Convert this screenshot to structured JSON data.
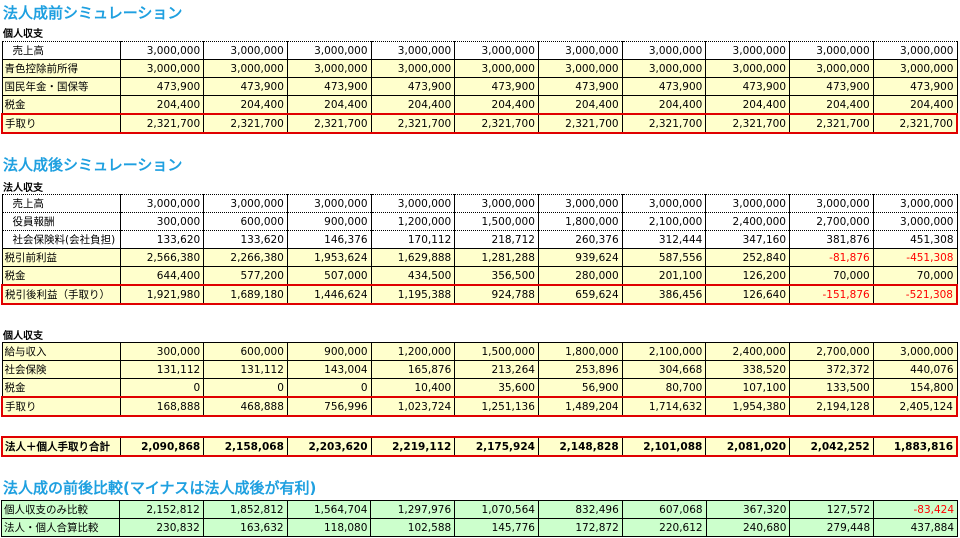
{
  "sections": {
    "pre": {
      "title": "法人成前シミュレーション",
      "subtitle": "個人収支",
      "rows": [
        {
          "label": "売上高",
          "indent": true,
          "style": "white",
          "values": [
            "3,000,000",
            "3,000,000",
            "3,000,000",
            "3,000,000",
            "3,000,000",
            "3,000,000",
            "3,000,000",
            "3,000,000",
            "3,000,000",
            "3,000,000"
          ]
        },
        {
          "label": "青色控除前所得",
          "style": "yellow",
          "values": [
            "3,000,000",
            "3,000,000",
            "3,000,000",
            "3,000,000",
            "3,000,000",
            "3,000,000",
            "3,000,000",
            "3,000,000",
            "3,000,000",
            "3,000,000"
          ]
        },
        {
          "label": "国民年金・国保等",
          "style": "yellow",
          "values": [
            "473,900",
            "473,900",
            "473,900",
            "473,900",
            "473,900",
            "473,900",
            "473,900",
            "473,900",
            "473,900",
            "473,900"
          ]
        },
        {
          "label": "税金",
          "style": "yellow",
          "values": [
            "204,400",
            "204,400",
            "204,400",
            "204,400",
            "204,400",
            "204,400",
            "204,400",
            "204,400",
            "204,400",
            "204,400"
          ]
        },
        {
          "label": "手取り",
          "style": "yellow",
          "red": true,
          "values": [
            "2,321,700",
            "2,321,700",
            "2,321,700",
            "2,321,700",
            "2,321,700",
            "2,321,700",
            "2,321,700",
            "2,321,700",
            "2,321,700",
            "2,321,700"
          ]
        }
      ]
    },
    "post": {
      "title": "法人成後シミュレーション",
      "subtitle": "法人収支",
      "rows": [
        {
          "label": "売上高",
          "indent": true,
          "style": "white",
          "values": [
            "3,000,000",
            "3,000,000",
            "3,000,000",
            "3,000,000",
            "3,000,000",
            "3,000,000",
            "3,000,000",
            "3,000,000",
            "3,000,000",
            "3,000,000"
          ]
        },
        {
          "label": "役員報酬",
          "indent": true,
          "style": "white",
          "values": [
            "300,000",
            "600,000",
            "900,000",
            "1,200,000",
            "1,500,000",
            "1,800,000",
            "2,100,000",
            "2,400,000",
            "2,700,000",
            "3,000,000"
          ]
        },
        {
          "label": "社会保険料(会社負担)",
          "indent": true,
          "style": "white",
          "values": [
            "133,620",
            "133,620",
            "146,376",
            "170,112",
            "218,712",
            "260,376",
            "312,444",
            "347,160",
            "381,876",
            "451,308"
          ]
        },
        {
          "label": "税引前利益",
          "style": "yellow",
          "values": [
            "2,566,380",
            "2,266,380",
            "1,953,624",
            "1,629,888",
            "1,281,288",
            "939,624",
            "587,556",
            "252,840",
            "-81,876",
            "-451,308"
          ]
        },
        {
          "label": "税金",
          "style": "yellow",
          "values": [
            "644,400",
            "577,200",
            "507,000",
            "434,500",
            "356,500",
            "280,000",
            "201,100",
            "126,200",
            "70,000",
            "70,000"
          ]
        },
        {
          "label": "税引後利益（手取り）",
          "style": "yellow",
          "red": true,
          "values": [
            "1,921,980",
            "1,689,180",
            "1,446,624",
            "1,195,388",
            "924,788",
            "659,624",
            "386,456",
            "126,640",
            "-151,876",
            "-521,308"
          ]
        }
      ]
    },
    "personal": {
      "subtitle": "個人収支",
      "rows": [
        {
          "label": "給与収入",
          "style": "yellow",
          "values": [
            "300,000",
            "600,000",
            "900,000",
            "1,200,000",
            "1,500,000",
            "1,800,000",
            "2,100,000",
            "2,400,000",
            "2,700,000",
            "3,000,000"
          ]
        },
        {
          "label": "社会保険",
          "style": "yellow",
          "values": [
            "131,112",
            "131,112",
            "143,004",
            "165,876",
            "213,264",
            "253,896",
            "304,668",
            "338,520",
            "372,372",
            "440,076"
          ]
        },
        {
          "label": "税金",
          "style": "yellow",
          "values": [
            "0",
            "0",
            "0",
            "10,400",
            "35,600",
            "56,900",
            "80,700",
            "107,100",
            "133,500",
            "154,800"
          ]
        },
        {
          "label": "手取り",
          "style": "yellow",
          "red": true,
          "values": [
            "168,888",
            "468,888",
            "756,996",
            "1,023,724",
            "1,251,136",
            "1,489,204",
            "1,714,632",
            "1,954,380",
            "2,194,128",
            "2,405,124"
          ]
        }
      ]
    },
    "total": {
      "rows": [
        {
          "label": "法人＋個人手取り合計",
          "style": "yellow",
          "red": true,
          "bold": true,
          "values": [
            "2,090,868",
            "2,158,068",
            "2,203,620",
            "2,219,112",
            "2,175,924",
            "2,148,828",
            "2,101,088",
            "2,081,020",
            "2,042,252",
            "1,883,816"
          ]
        }
      ]
    },
    "compare": {
      "title": "法人成の前後比較(マイナスは法人成後が有利)",
      "rows": [
        {
          "label": "個人収支のみ比較",
          "style": "green",
          "values": [
            "2,152,812",
            "1,852,812",
            "1,564,704",
            "1,297,976",
            "1,070,564",
            "832,496",
            "607,068",
            "367,320",
            "127,572",
            "-83,424"
          ]
        },
        {
          "label": "法人・個人合算比較",
          "style": "green",
          "values": [
            "230,832",
            "163,632",
            "118,080",
            "102,588",
            "145,776",
            "172,872",
            "220,612",
            "240,680",
            "279,448",
            "437,884"
          ]
        }
      ]
    }
  },
  "colors": {
    "title": "#1fa0e0",
    "negative": "#ff0000",
    "highlight_border": "#e00000",
    "yellow_fill": "#ffffcc",
    "green_fill": "#ccffcc"
  }
}
